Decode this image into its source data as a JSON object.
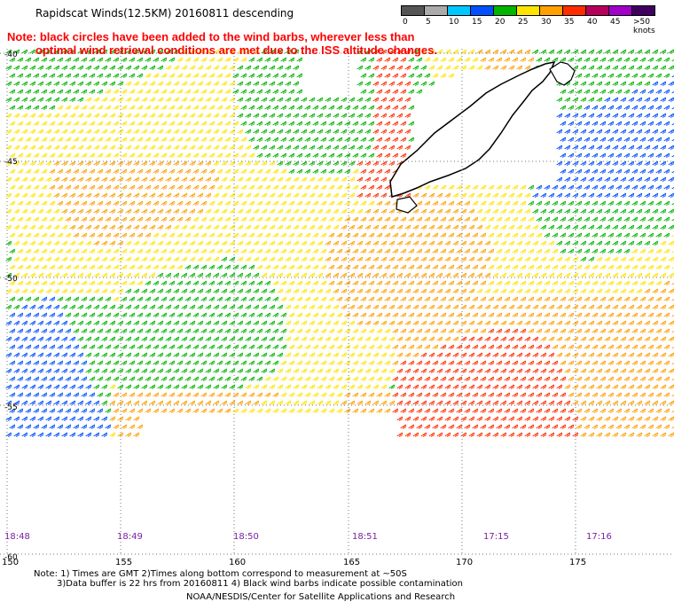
{
  "title": "Rapidscat Winds(12.5KM) 20160811 descending",
  "note_line1": "Note: black circles have been added to the wind barbs, wherever less than",
  "note_line2": "optimal wind retrieval conditions are met due to the ISS altitude changes.",
  "legend": {
    "labels": [
      "0",
      "5",
      "10",
      "15",
      "20",
      "25",
      "30",
      "35",
      "40",
      "45",
      ">50 knots"
    ],
    "colors": [
      "#555555",
      "#aaaaaa",
      "#00c8ff",
      "#0050ff",
      "#00b400",
      "#ffe400",
      "#ffa000",
      "#ff2d00",
      "#b4005a",
      "#a000c8",
      "#400060"
    ]
  },
  "lat_labels": [
    "-40",
    "-45",
    "-50",
    "-55",
    "-60"
  ],
  "lon_labels": [
    "150",
    "155",
    "160",
    "165",
    "170",
    "175"
  ],
  "time_labels": [
    "18:48",
    "18:49",
    "18:50",
    "18:51",
    "17:15",
    "17:16"
  ],
  "footer": {
    "line1": "Note: 1) Times are GMT 2)Times along bottom correspond to measurement at ~50S",
    "line2": "3)Data buffer is 22 hrs from 20160811 4) Black wind barbs indicate possible contamination",
    "line3": "NOAA/NESDIS/Center for Satellite Applications and Research"
  }
}
